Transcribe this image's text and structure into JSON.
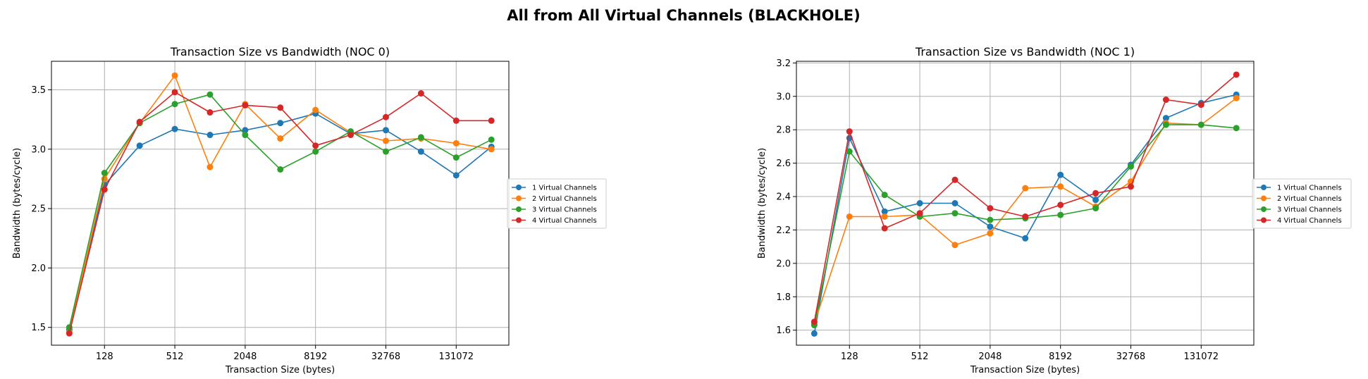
{
  "figure": {
    "suptitle": "All from All Virtual Channels (BLACKHOLE)"
  },
  "series_colors": [
    "#1f77b4",
    "#ff7f0e",
    "#2ca02c",
    "#d62728"
  ],
  "chart_data": [
    {
      "type": "line",
      "title": "Transaction Size vs Bandwidth (NOC 0)",
      "xlabel": "Transaction Size (bytes)",
      "ylabel": "Bandwidth (bytes/cycle)",
      "x_scale": "log2",
      "x": [
        64,
        128,
        256,
        512,
        1024,
        2048,
        4096,
        8192,
        16384,
        32768,
        65536,
        131072,
        262144
      ],
      "xticks": [
        128,
        512,
        2048,
        8192,
        32768,
        131072
      ],
      "xticklabels": [
        "128",
        "512",
        "2048",
        "8192",
        "32768",
        "131072"
      ],
      "xlim": [
        45,
        370000
      ],
      "ylim": [
        1.35,
        3.74
      ],
      "yticks": [
        1.5,
        2.0,
        2.5,
        3.0,
        3.5
      ],
      "yticklabels": [
        "1.5",
        "2.0",
        "2.5",
        "3.0",
        "3.5"
      ],
      "grid": true,
      "legend_position": "outside-right",
      "series": [
        {
          "name": "1 Virtual Channels",
          "values": [
            1.48,
            2.7,
            3.03,
            3.17,
            3.12,
            3.16,
            3.22,
            3.3,
            3.13,
            3.16,
            2.98,
            2.78,
            3.02
          ]
        },
        {
          "name": "2 Virtual Channels",
          "values": [
            1.46,
            2.75,
            3.22,
            3.62,
            2.85,
            3.38,
            3.09,
            3.33,
            3.14,
            3.07,
            3.09,
            3.05,
            3.0
          ]
        },
        {
          "name": "3 Virtual Channels",
          "values": [
            1.5,
            2.8,
            3.22,
            3.38,
            3.46,
            3.12,
            2.83,
            2.98,
            3.15,
            2.98,
            3.1,
            2.93,
            3.08
          ]
        },
        {
          "name": "4 Virtual Channels",
          "values": [
            1.45,
            2.66,
            3.23,
            3.48,
            3.31,
            3.37,
            3.35,
            3.03,
            3.12,
            3.27,
            3.47,
            3.24,
            3.24
          ]
        }
      ]
    },
    {
      "type": "line",
      "title": "Transaction Size vs Bandwidth (NOC 1)",
      "xlabel": "Transaction Size (bytes)",
      "ylabel": "Bandwidth (bytes/cycle)",
      "x_scale": "log2",
      "x": [
        64,
        128,
        256,
        512,
        1024,
        2048,
        4096,
        8192,
        16384,
        32768,
        65536,
        131072,
        262144
      ],
      "xticks": [
        128,
        512,
        2048,
        8192,
        32768,
        131072
      ],
      "xticklabels": [
        "128",
        "512",
        "2048",
        "8192",
        "32768",
        "131072"
      ],
      "xlim": [
        45,
        370000
      ],
      "ylim": [
        1.51,
        3.21
      ],
      "yticks": [
        1.6,
        1.8,
        2.0,
        2.2,
        2.4,
        2.6,
        2.8,
        3.0,
        3.2
      ],
      "yticklabels": [
        "1.6",
        "1.8",
        "2.0",
        "2.2",
        "2.4",
        "2.6",
        "2.8",
        "3.0",
        "3.2"
      ],
      "grid": true,
      "legend_position": "outside-right",
      "series": [
        {
          "name": "1 Virtual Channels",
          "values": [
            1.58,
            2.75,
            2.31,
            2.36,
            2.36,
            2.22,
            2.15,
            2.53,
            2.38,
            2.59,
            2.87,
            2.96,
            3.01
          ]
        },
        {
          "name": "2 Virtual Channels",
          "values": [
            1.64,
            2.28,
            2.28,
            2.29,
            2.11,
            2.18,
            2.45,
            2.46,
            2.34,
            2.49,
            2.84,
            2.83,
            2.99
          ]
        },
        {
          "name": "3 Virtual Channels",
          "values": [
            1.63,
            2.67,
            2.41,
            2.28,
            2.3,
            2.26,
            2.27,
            2.29,
            2.33,
            2.58,
            2.83,
            2.83,
            2.81
          ]
        },
        {
          "name": "4 Virtual Channels",
          "values": [
            1.65,
            2.79,
            2.21,
            2.3,
            2.5,
            2.33,
            2.28,
            2.35,
            2.42,
            2.46,
            2.98,
            2.95,
            3.13
          ]
        }
      ]
    }
  ]
}
